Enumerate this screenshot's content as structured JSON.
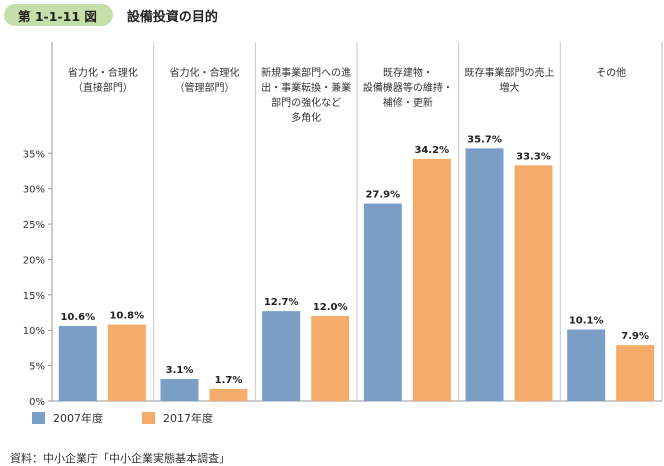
{
  "figure": {
    "number": "第 1-1-11 図",
    "title": "設備投資の目的",
    "source": "資料：中小企業庁「中小企業実態基本調査」"
  },
  "colors": {
    "series_2007": "#7b9ec6",
    "series_2017": "#f5ac6b",
    "badge": "#c4dfa9"
  },
  "chart_data": {
    "type": "bar",
    "title": "設備投資の目的",
    "categories": [
      [
        "省力化・合理化",
        "（直接部門）"
      ],
      [
        "省力化・合理化",
        "（管理部門）"
      ],
      [
        "新規事業部門への進",
        "出・事業転換・兼業",
        "部門の強化など",
        "多角化"
      ],
      [
        "既存建物・",
        "設備機器等の維持・",
        "補修・更新"
      ],
      [
        "既存事業部門の売上",
        "増大"
      ],
      [
        "その他"
      ]
    ],
    "series": [
      {
        "name": "2007年度",
        "values": [
          10.6,
          3.1,
          12.7,
          27.9,
          35.7,
          10.1
        ],
        "labels": [
          "10.6%",
          "3.1%",
          "12.7%",
          "27.9%",
          "35.7%",
          "10.1%"
        ]
      },
      {
        "name": "2017年度",
        "values": [
          10.8,
          1.7,
          12.0,
          34.2,
          33.3,
          7.9
        ],
        "labels": [
          "10.8%",
          "1.7%",
          "12.0%",
          "34.2%",
          "33.3%",
          "7.9%"
        ]
      }
    ],
    "yticks": [
      0,
      5,
      10,
      15,
      20,
      25,
      30,
      35
    ],
    "ytick_labels": [
      "0%",
      "5%",
      "10%",
      "15%",
      "20%",
      "25%",
      "30%",
      "35%"
    ],
    "ylim": [
      0,
      39
    ],
    "xlabel": "",
    "ylabel": "",
    "legend_position": "bottom-left",
    "grid": false
  }
}
